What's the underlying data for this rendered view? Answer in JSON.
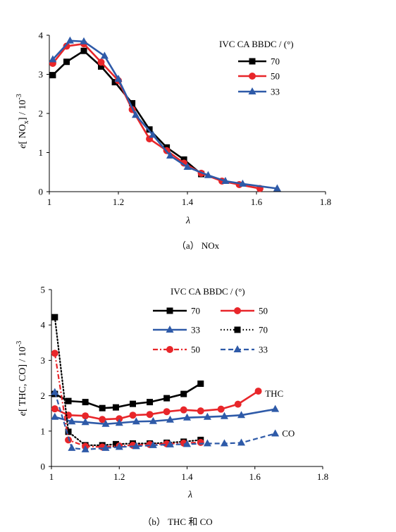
{
  "chart_data": [
    {
      "type": "line",
      "caption": "（a）  NOx",
      "xlabel": "λ",
      "ylabel": "e[ NOx] / 10⁻³",
      "xlim": [
        1.0,
        1.8
      ],
      "ylim": [
        0,
        4
      ],
      "xticks": [
        "1",
        "1.2",
        "1.4",
        "1.6",
        "1.8"
      ],
      "yticks": [
        "0",
        "1",
        "2",
        "3",
        "4"
      ],
      "legend_title": "IVC CA BBDC / (°)",
      "legend_position": "top-right",
      "series": [
        {
          "name": "70",
          "color": "#000000",
          "marker": "square",
          "dash": "solid",
          "x": [
            1.01,
            1.05,
            1.1,
            1.15,
            1.19,
            1.24,
            1.29,
            1.34,
            1.39,
            1.44
          ],
          "y": [
            2.98,
            3.32,
            3.6,
            3.2,
            2.8,
            2.26,
            1.59,
            1.13,
            0.82,
            0.45
          ]
        },
        {
          "name": "50",
          "color": "#e8262a",
          "marker": "circle",
          "dash": "solid",
          "x": [
            1.01,
            1.05,
            1.1,
            1.15,
            1.2,
            1.24,
            1.29,
            1.34,
            1.39,
            1.44,
            1.5,
            1.55,
            1.61
          ],
          "y": [
            3.28,
            3.72,
            3.78,
            3.31,
            2.84,
            2.1,
            1.35,
            1.05,
            0.73,
            0.47,
            0.27,
            0.18,
            0.08
          ]
        },
        {
          "name": "33",
          "color": "#2e5aa8",
          "marker": "triangle",
          "dash": "solid",
          "x": [
            1.01,
            1.06,
            1.1,
            1.16,
            1.2,
            1.25,
            1.3,
            1.35,
            1.4,
            1.46,
            1.51,
            1.56,
            1.66
          ],
          "y": [
            3.38,
            3.86,
            3.84,
            3.47,
            2.88,
            1.96,
            1.45,
            0.92,
            0.63,
            0.42,
            0.27,
            0.2,
            0.08
          ]
        }
      ]
    },
    {
      "type": "line",
      "caption": "（b）  THC 和 CO",
      "xlabel": "λ",
      "ylabel": "e[ THC,  CO] / 10⁻³",
      "xlim": [
        1.0,
        1.8
      ],
      "ylim": [
        0,
        5
      ],
      "xticks": [
        "1",
        "1.2",
        "1.4",
        "1.6",
        "1.8"
      ],
      "yticks": [
        "0",
        "1",
        "2",
        "3",
        "4",
        "5"
      ],
      "legend_title": "IVC CA BBDC / (°)",
      "legend_position": "top",
      "annotations": [
        {
          "text": "THC",
          "x": 1.63,
          "y": 2.05
        },
        {
          "text": "CO",
          "x": 1.68,
          "y": 0.93
        }
      ],
      "series": [
        {
          "name": "70",
          "group": "THC",
          "color": "#000000",
          "marker": "square",
          "dash": "solid",
          "x": [
            1.01,
            1.05,
            1.1,
            1.15,
            1.19,
            1.24,
            1.29,
            1.34,
            1.39,
            1.44
          ],
          "y": [
            2.05,
            1.85,
            1.82,
            1.65,
            1.67,
            1.77,
            1.82,
            1.93,
            2.05,
            2.34
          ]
        },
        {
          "name": "50",
          "group": "THC",
          "color": "#e8262a",
          "marker": "circle",
          "dash": "solid",
          "x": [
            1.01,
            1.05,
            1.1,
            1.15,
            1.2,
            1.24,
            1.29,
            1.34,
            1.39,
            1.44,
            1.5,
            1.55,
            1.61
          ],
          "y": [
            1.63,
            1.45,
            1.43,
            1.33,
            1.35,
            1.45,
            1.47,
            1.55,
            1.6,
            1.57,
            1.62,
            1.76,
            2.13
          ]
        },
        {
          "name": "33",
          "group": "THC",
          "color": "#2e5aa8",
          "marker": "triangle",
          "dash": "solid",
          "x": [
            1.01,
            1.06,
            1.1,
            1.16,
            1.2,
            1.25,
            1.3,
            1.35,
            1.4,
            1.46,
            1.51,
            1.56,
            1.66
          ],
          "y": [
            1.4,
            1.27,
            1.25,
            1.2,
            1.23,
            1.27,
            1.28,
            1.32,
            1.38,
            1.4,
            1.42,
            1.45,
            1.62
          ]
        },
        {
          "name": "70",
          "group": "CO",
          "color": "#000000",
          "marker": "square",
          "dash": "dotted",
          "x": [
            1.01,
            1.05,
            1.1,
            1.15,
            1.19,
            1.24,
            1.29,
            1.34,
            1.39,
            1.44
          ],
          "y": [
            4.22,
            0.98,
            0.6,
            0.6,
            0.63,
            0.65,
            0.65,
            0.67,
            0.7,
            0.75
          ]
        },
        {
          "name": "50",
          "group": "CO",
          "color": "#e8262a",
          "marker": "circle",
          "dash": "dashdot",
          "x": [
            1.01,
            1.05,
            1.1,
            1.15,
            1.2,
            1.24,
            1.29,
            1.34,
            1.39,
            1.44
          ],
          "y": [
            3.2,
            0.75,
            0.57,
            0.55,
            0.58,
            0.6,
            0.62,
            0.64,
            0.66,
            0.68
          ]
        },
        {
          "name": "33",
          "group": "CO",
          "color": "#2e5aa8",
          "marker": "triangle",
          "dash": "dashed",
          "x": [
            1.01,
            1.06,
            1.1,
            1.16,
            1.2,
            1.25,
            1.3,
            1.35,
            1.4,
            1.46,
            1.51,
            1.56,
            1.66
          ],
          "y": [
            2.1,
            0.52,
            0.48,
            0.52,
            0.55,
            0.57,
            0.6,
            0.62,
            0.63,
            0.65,
            0.65,
            0.67,
            0.93
          ]
        }
      ]
    }
  ]
}
